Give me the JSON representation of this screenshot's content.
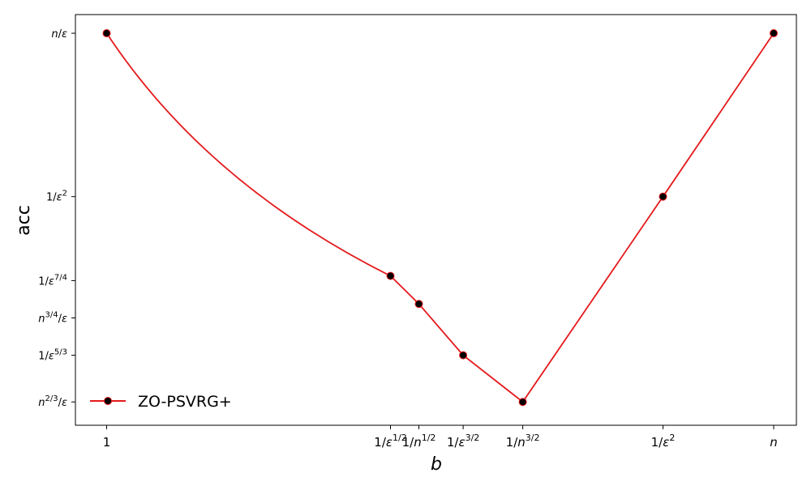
{
  "chart_data": {
    "type": "line",
    "xlabel": "b",
    "ylabel": "acc",
    "grid": false,
    "legend_position": "lower-left",
    "line_color": "#e41a1c",
    "marker_color": "#000000",
    "x_ticks": [
      {
        "pos": 0.0,
        "base": "1",
        "sup": ""
      },
      {
        "pos": 0.5,
        "base": "1/ε",
        "sup": "1/2"
      },
      {
        "pos": 0.55,
        "base": "1/n",
        "sup": "1/2"
      },
      {
        "pos": 0.628,
        "base": "1/ε",
        "sup": "3/2"
      },
      {
        "pos": 0.733,
        "base": "1/n",
        "sup": "3/2"
      },
      {
        "pos": 0.98,
        "base": "1/ε",
        "sup": "2"
      },
      {
        "pos": 1.175,
        "base": "n",
        "sup": ""
      }
    ],
    "y_ticks": [
      {
        "pos": 0.45,
        "pre": "n",
        "presup": "2/3",
        "post": "/ε"
      },
      {
        "pos": 0.5,
        "pre": "1/ε",
        "presup": "5/3",
        "post": ""
      },
      {
        "pos": 0.54,
        "pre": "n",
        "presup": "3/4",
        "post": "/ε"
      },
      {
        "pos": 0.58,
        "pre": "1/ε",
        "presup": "7/4",
        "post": ""
      },
      {
        "pos": 0.67,
        "pre": "1/ε",
        "presup": "2",
        "post": ""
      },
      {
        "pos": 0.845,
        "pre": "n/ε",
        "presup": "",
        "post": ""
      }
    ],
    "xlim": [
      -0.055,
      1.215
    ],
    "ylim": [
      0.425,
      0.865
    ],
    "series": [
      {
        "name": "ZO-PSVRG+",
        "points": [
          {
            "x": 0.0,
            "y": 0.845
          },
          {
            "x": 0.5,
            "y": 0.585
          },
          {
            "x": 0.55,
            "y": 0.555
          },
          {
            "x": 0.628,
            "y": 0.5
          },
          {
            "x": 0.733,
            "y": 0.45
          },
          {
            "x": 0.98,
            "y": 0.67
          },
          {
            "x": 1.175,
            "y": 0.845
          }
        ]
      }
    ]
  }
}
